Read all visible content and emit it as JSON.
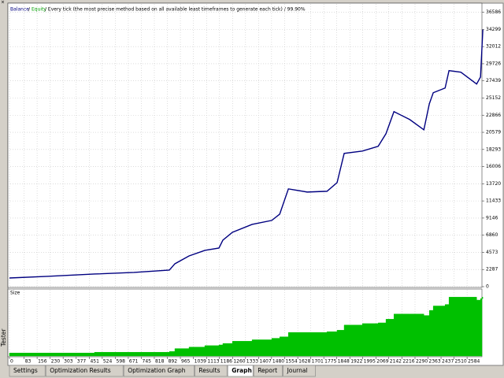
{
  "side_title": "Tester",
  "legend": {
    "balance": "Balance",
    "sep": "/",
    "equity": "Equity",
    "info": "/ Every tick (the most precise method based on all available least timeframes to generate each tick) / 99.90%"
  },
  "chart_data": {
    "type": "line",
    "x": [
      0,
      213,
      480,
      703,
      903,
      934,
      1014,
      1103,
      1183,
      1205,
      1259,
      1370,
      1481,
      1526,
      1575,
      1681,
      1793,
      1850,
      1890,
      1993,
      2082,
      2126,
      2171,
      2260,
      2340,
      2371,
      2393,
      2460,
      2482,
      2549,
      2638,
      2660,
      2673
    ],
    "series": [
      {
        "name": "Balance",
        "color": "#000080",
        "values": [
          1156,
          1367,
          1682,
          1892,
          2208,
          3049,
          4100,
          4836,
          5151,
          6203,
          7254,
          8305,
          8831,
          9672,
          13036,
          12615,
          12720,
          13877,
          17767,
          18082,
          18713,
          20395,
          23339,
          22287,
          20921,
          24390,
          25862,
          26493,
          28806,
          28596,
          27018,
          27965,
          34272
        ]
      }
    ],
    "xlim": [
      -9,
      2668
    ],
    "ylim": [
      0,
      37700
    ],
    "xticks": [
      0,
      83,
      156,
      230,
      303,
      377,
      451,
      524,
      598,
      671,
      745,
      818,
      892,
      965,
      1039,
      1113,
      1186,
      1260,
      1333,
      1407,
      1480,
      1554,
      1628,
      1701,
      1775,
      1848,
      1922,
      1995,
      2069,
      2142,
      2216,
      2290,
      2363,
      2437,
      2510,
      2584
    ],
    "yticks": [
      0,
      2287,
      4573,
      6860,
      9146,
      11433,
      13720,
      16006,
      18293,
      20579,
      22866,
      25152,
      27439,
      29726,
      32012,
      34299,
      36586
    ],
    "grid": true
  },
  "size_panel": {
    "label": "Size",
    "color": "#00c000",
    "ylim": [
      0,
      90
    ],
    "values": [
      4,
      4,
      5,
      5,
      6,
      10,
      12,
      14,
      15,
      17,
      20,
      22,
      24,
      26,
      32,
      32,
      33,
      35,
      42,
      44,
      45,
      50,
      57,
      57,
      55,
      62,
      68,
      70,
      80,
      80,
      76,
      78,
      80
    ]
  },
  "tabs": [
    "Settings",
    "Optimization Results",
    "Optimization Graph",
    "Results",
    "Graph",
    "Report",
    "Journal"
  ],
  "selected_tab": 4
}
